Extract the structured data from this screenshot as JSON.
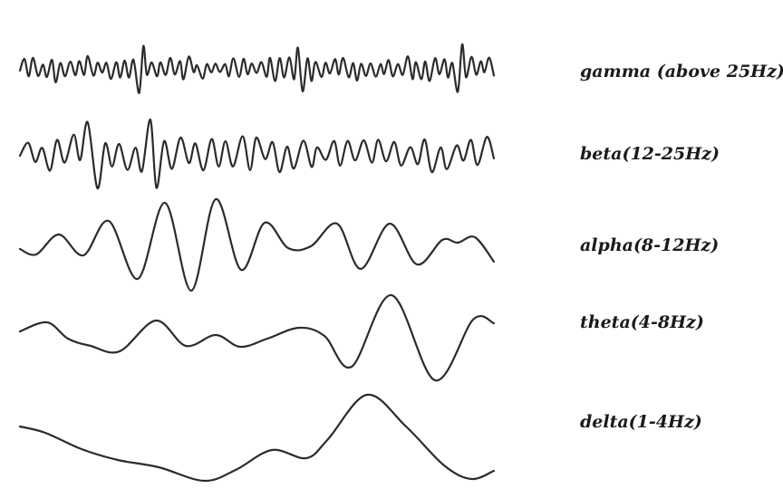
{
  "waves": [
    {
      "id": "gamma",
      "label": "gamma (above 25Hz)"
    },
    {
      "id": "beta",
      "label": "beta(12-25Hz)"
    },
    {
      "id": "alpha",
      "label": "alpha(8-12Hz)"
    },
    {
      "id": "theta",
      "label": "theta(4-8Hz)"
    },
    {
      "id": "delta",
      "label": "delta(1-4Hz)"
    }
  ],
  "colors": {
    "stroke": "#2b2b2b",
    "text": "#1a1a1a",
    "background": "#ffffff"
  }
}
